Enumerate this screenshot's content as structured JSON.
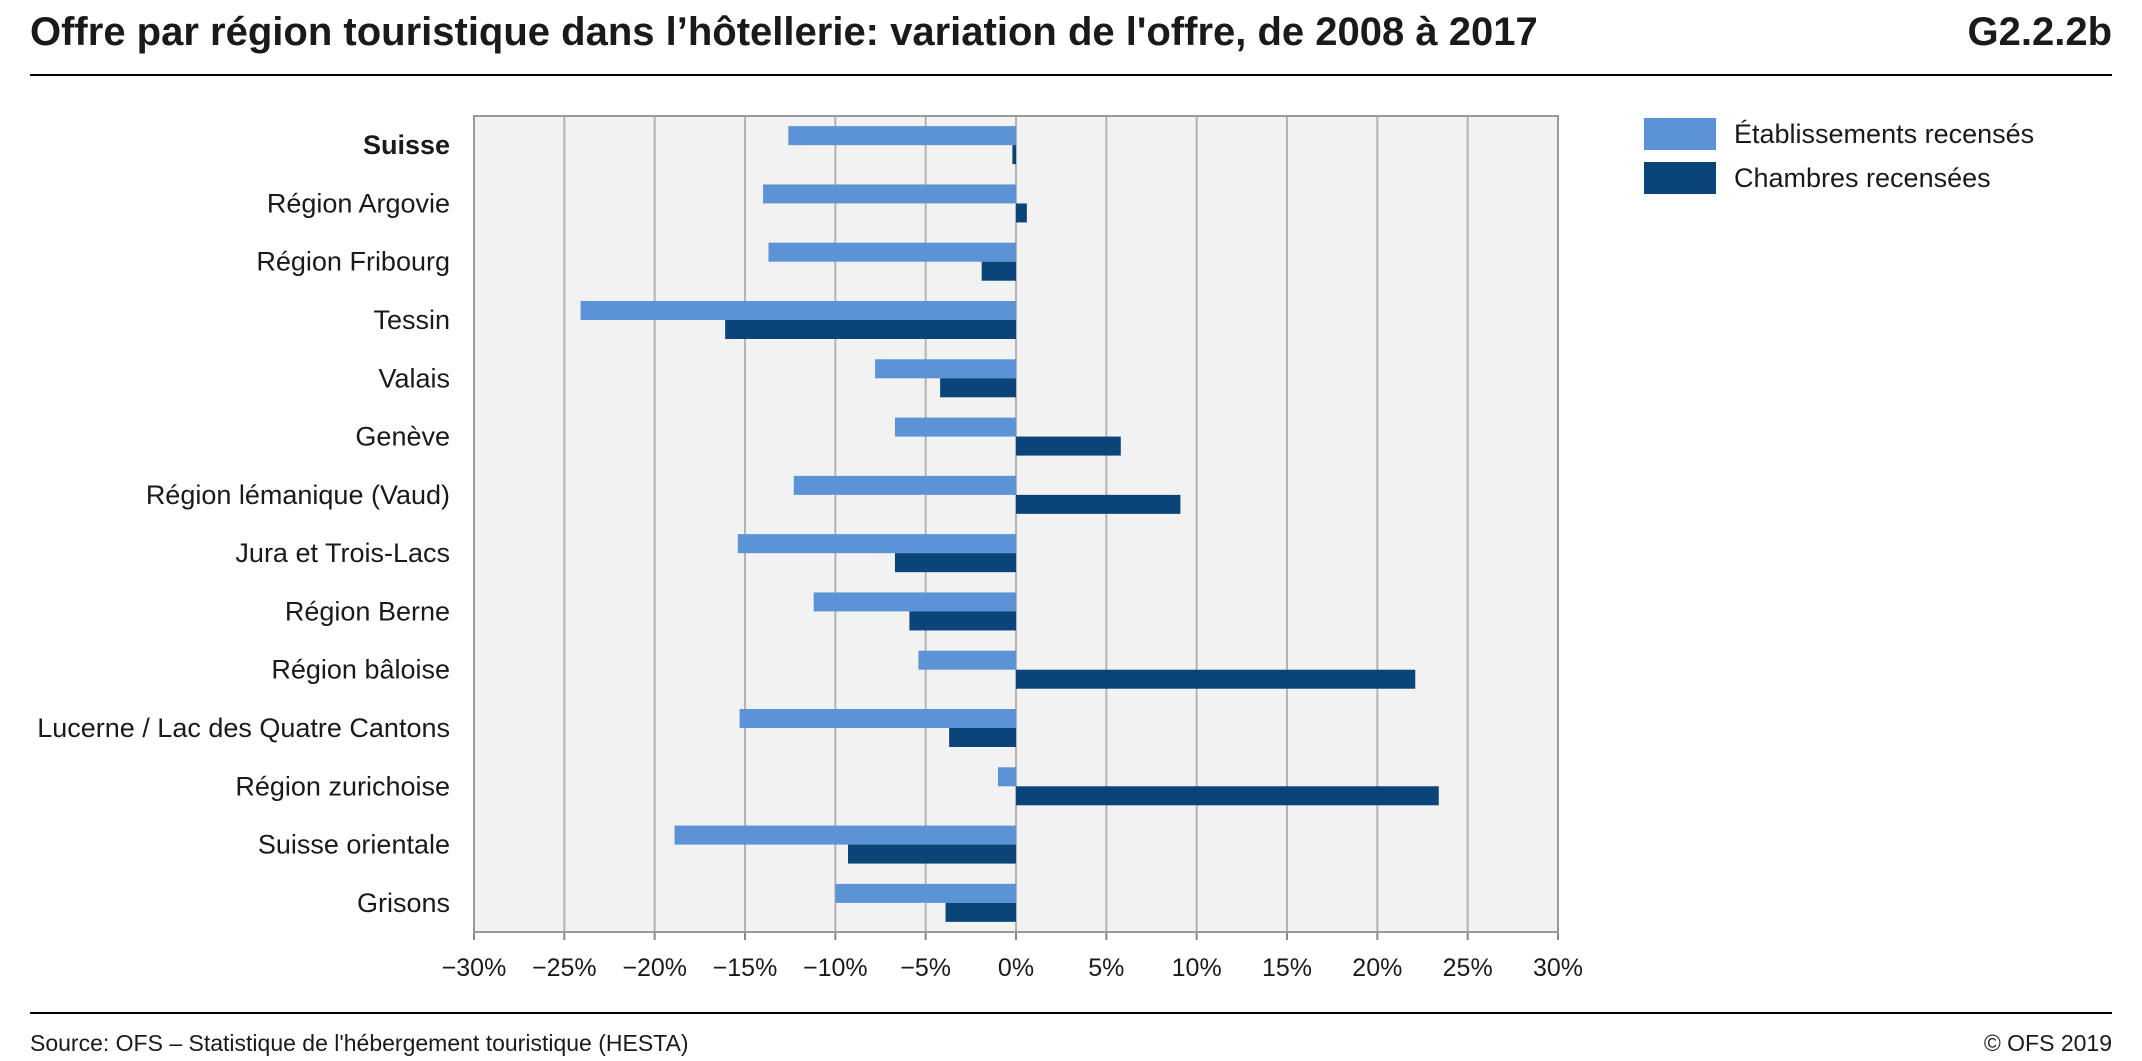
{
  "header": {
    "title": "Offre par région touristique dans l’hôtellerie: variation de l'offre, de 2008 à 2017",
    "code": "G2.2.2b"
  },
  "footer": {
    "source": "Source: OFS – Statistique de l'hébergement touristique (HESTA)",
    "copyright": "© OFS 2019"
  },
  "colors": {
    "etablissements": "#5b93d6",
    "chambres": "#0a4478",
    "plot_bg": "#f2f2f2",
    "grid": "#b3b3b3"
  },
  "chart_data": {
    "type": "bar",
    "orientation": "horizontal",
    "title": "",
    "xlabel": "",
    "ylabel": "",
    "xlim": [
      -30,
      30
    ],
    "xticks": [
      -30,
      -25,
      -20,
      -15,
      -10,
      -5,
      0,
      5,
      10,
      15,
      20,
      25,
      30
    ],
    "xtick_labels": [
      "−30%",
      "−25%",
      "−20%",
      "−15%",
      "−10%",
      "−5%",
      "0%",
      "5%",
      "10%",
      "15%",
      "20%",
      "25%",
      "30%"
    ],
    "grid": true,
    "legend_position": "top-right",
    "bold_categories": [
      "Suisse"
    ],
    "categories": [
      "Suisse",
      "Région Argovie",
      "Région Fribourg",
      "Tessin",
      "Valais",
      "Genève",
      "Région lémanique (Vaud)",
      "Jura et Trois-Lacs",
      "Région Berne",
      "Région bâloise",
      "Lucerne / Lac des Quatre Cantons",
      "Région zurichoise",
      "Suisse orientale",
      "Grisons"
    ],
    "series": [
      {
        "name": "Établissements recensés",
        "color": "#5b93d6",
        "values": [
          -12.6,
          -14.0,
          -13.7,
          -24.1,
          -7.8,
          -6.7,
          -12.3,
          -15.4,
          -11.2,
          -5.4,
          -15.3,
          -1.0,
          -18.9,
          -10.0
        ]
      },
      {
        "name": "Chambres recensées",
        "color": "#0a4478",
        "values": [
          -0.2,
          0.6,
          -1.9,
          -16.1,
          -4.2,
          5.8,
          9.1,
          -6.7,
          -5.9,
          22.1,
          -3.7,
          23.4,
          -9.3,
          -3.9
        ]
      }
    ]
  }
}
